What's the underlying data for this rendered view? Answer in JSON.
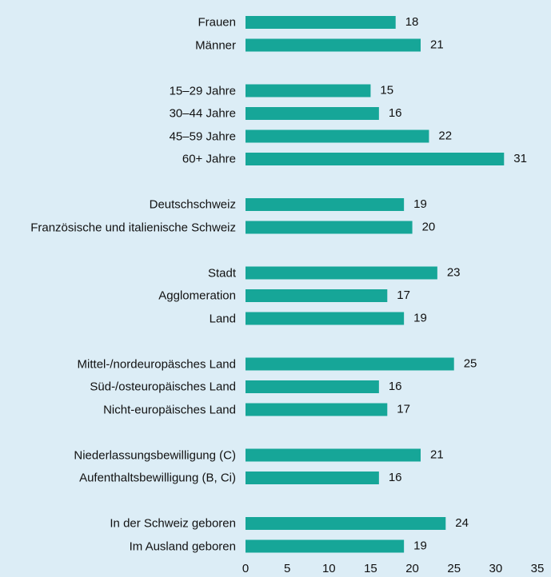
{
  "chart_data": {
    "type": "barh",
    "categories": [
      "Frauen",
      "Männer",
      null,
      "15–29 Jahre",
      "30–44 Jahre",
      "45–59 Jahre",
      "60+ Jahre",
      null,
      "Deutschschweiz",
      "Französische und italienische Schweiz",
      null,
      "Stadt",
      "Agglomeration",
      "Land",
      null,
      "Mittel-/nordeuropäsches Land",
      "Süd-/osteuropäisches Land",
      "Nicht-europäisches Land",
      null,
      "Niederlassungsbewilligung (C)",
      "Aufenthaltsbewilligung (B, Ci)",
      null,
      "In der Schweiz geboren",
      "Im Ausland geboren"
    ],
    "values": [
      18,
      21,
      null,
      15,
      16,
      22,
      31,
      null,
      19,
      20,
      null,
      23,
      17,
      19,
      null,
      25,
      16,
      17,
      null,
      21,
      16,
      null,
      24,
      19
    ],
    "color": "#16a698",
    "xlim": [
      0,
      35
    ],
    "xticks": [
      0,
      5,
      10,
      15,
      20,
      25,
      30,
      35
    ],
    "grid": false
  }
}
